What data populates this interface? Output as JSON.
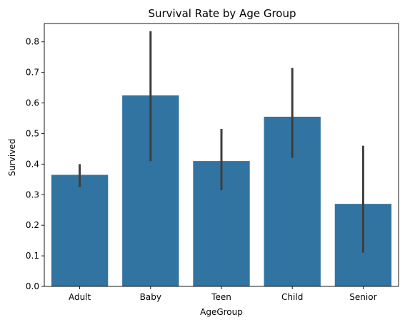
{
  "chart_data": {
    "type": "bar",
    "title": "Survival Rate by Age Group",
    "xlabel": "AgeGroup",
    "ylabel": "Survived",
    "categories": [
      "Adult",
      "Baby",
      "Teen",
      "Child",
      "Senior"
    ],
    "values": [
      0.365,
      0.625,
      0.41,
      0.555,
      0.27
    ],
    "error_low": [
      0.325,
      0.41,
      0.315,
      0.42,
      0.11
    ],
    "error_high": [
      0.4,
      0.835,
      0.515,
      0.715,
      0.46
    ],
    "ylim": [
      0,
      0.86
    ],
    "yticks": [
      "0.0",
      "0.1",
      "0.2",
      "0.3",
      "0.4",
      "0.5",
      "0.6",
      "0.7",
      "0.8"
    ],
    "grid": false,
    "bar_color": "#3274a1",
    "error_color": "#3d3d3d"
  }
}
